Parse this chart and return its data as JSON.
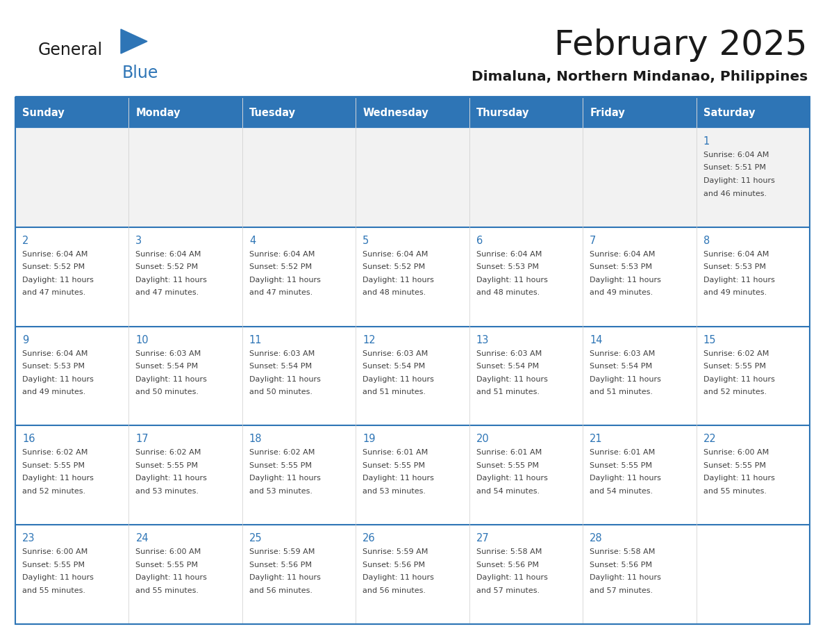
{
  "title": "February 2025",
  "subtitle": "Dimaluna, Northern Mindanao, Philippines",
  "days_of_week": [
    "Sunday",
    "Monday",
    "Tuesday",
    "Wednesday",
    "Thursday",
    "Friday",
    "Saturday"
  ],
  "header_bg": "#2E75B6",
  "header_text": "#FFFFFF",
  "cell_bg": "#FFFFFF",
  "row1_bg": "#F2F2F2",
  "border_color": "#2E75B6",
  "row_divider_color": "#2E75B6",
  "day_number_color": "#2E75B6",
  "text_color": "#404040",
  "title_color": "#1a1a1a",
  "logo_general_color": "#1a1a1a",
  "logo_blue_color": "#2E75B6",
  "calendar_data": [
    [
      {
        "day": null,
        "sunrise": null,
        "sunset": null,
        "daylight": null
      },
      {
        "day": null,
        "sunrise": null,
        "sunset": null,
        "daylight": null
      },
      {
        "day": null,
        "sunrise": null,
        "sunset": null,
        "daylight": null
      },
      {
        "day": null,
        "sunrise": null,
        "sunset": null,
        "daylight": null
      },
      {
        "day": null,
        "sunrise": null,
        "sunset": null,
        "daylight": null
      },
      {
        "day": null,
        "sunrise": null,
        "sunset": null,
        "daylight": null
      },
      {
        "day": 1,
        "sunrise": "6:04 AM",
        "sunset": "5:51 PM",
        "daylight": "11 hours and 46 minutes."
      }
    ],
    [
      {
        "day": 2,
        "sunrise": "6:04 AM",
        "sunset": "5:52 PM",
        "daylight": "11 hours and 47 minutes."
      },
      {
        "day": 3,
        "sunrise": "6:04 AM",
        "sunset": "5:52 PM",
        "daylight": "11 hours and 47 minutes."
      },
      {
        "day": 4,
        "sunrise": "6:04 AM",
        "sunset": "5:52 PM",
        "daylight": "11 hours and 47 minutes."
      },
      {
        "day": 5,
        "sunrise": "6:04 AM",
        "sunset": "5:52 PM",
        "daylight": "11 hours and 48 minutes."
      },
      {
        "day": 6,
        "sunrise": "6:04 AM",
        "sunset": "5:53 PM",
        "daylight": "11 hours and 48 minutes."
      },
      {
        "day": 7,
        "sunrise": "6:04 AM",
        "sunset": "5:53 PM",
        "daylight": "11 hours and 49 minutes."
      },
      {
        "day": 8,
        "sunrise": "6:04 AM",
        "sunset": "5:53 PM",
        "daylight": "11 hours and 49 minutes."
      }
    ],
    [
      {
        "day": 9,
        "sunrise": "6:04 AM",
        "sunset": "5:53 PM",
        "daylight": "11 hours and 49 minutes."
      },
      {
        "day": 10,
        "sunrise": "6:03 AM",
        "sunset": "5:54 PM",
        "daylight": "11 hours and 50 minutes."
      },
      {
        "day": 11,
        "sunrise": "6:03 AM",
        "sunset": "5:54 PM",
        "daylight": "11 hours and 50 minutes."
      },
      {
        "day": 12,
        "sunrise": "6:03 AM",
        "sunset": "5:54 PM",
        "daylight": "11 hours and 51 minutes."
      },
      {
        "day": 13,
        "sunrise": "6:03 AM",
        "sunset": "5:54 PM",
        "daylight": "11 hours and 51 minutes."
      },
      {
        "day": 14,
        "sunrise": "6:03 AM",
        "sunset": "5:54 PM",
        "daylight": "11 hours and 51 minutes."
      },
      {
        "day": 15,
        "sunrise": "6:02 AM",
        "sunset": "5:55 PM",
        "daylight": "11 hours and 52 minutes."
      }
    ],
    [
      {
        "day": 16,
        "sunrise": "6:02 AM",
        "sunset": "5:55 PM",
        "daylight": "11 hours and 52 minutes."
      },
      {
        "day": 17,
        "sunrise": "6:02 AM",
        "sunset": "5:55 PM",
        "daylight": "11 hours and 53 minutes."
      },
      {
        "day": 18,
        "sunrise": "6:02 AM",
        "sunset": "5:55 PM",
        "daylight": "11 hours and 53 minutes."
      },
      {
        "day": 19,
        "sunrise": "6:01 AM",
        "sunset": "5:55 PM",
        "daylight": "11 hours and 53 minutes."
      },
      {
        "day": 20,
        "sunrise": "6:01 AM",
        "sunset": "5:55 PM",
        "daylight": "11 hours and 54 minutes."
      },
      {
        "day": 21,
        "sunrise": "6:01 AM",
        "sunset": "5:55 PM",
        "daylight": "11 hours and 54 minutes."
      },
      {
        "day": 22,
        "sunrise": "6:00 AM",
        "sunset": "5:55 PM",
        "daylight": "11 hours and 55 minutes."
      }
    ],
    [
      {
        "day": 23,
        "sunrise": "6:00 AM",
        "sunset": "5:55 PM",
        "daylight": "11 hours and 55 minutes."
      },
      {
        "day": 24,
        "sunrise": "6:00 AM",
        "sunset": "5:55 PM",
        "daylight": "11 hours and 55 minutes."
      },
      {
        "day": 25,
        "sunrise": "5:59 AM",
        "sunset": "5:56 PM",
        "daylight": "11 hours and 56 minutes."
      },
      {
        "day": 26,
        "sunrise": "5:59 AM",
        "sunset": "5:56 PM",
        "daylight": "11 hours and 56 minutes."
      },
      {
        "day": 27,
        "sunrise": "5:58 AM",
        "sunset": "5:56 PM",
        "daylight": "11 hours and 57 minutes."
      },
      {
        "day": 28,
        "sunrise": "5:58 AM",
        "sunset": "5:56 PM",
        "daylight": "11 hours and 57 minutes."
      },
      {
        "day": null,
        "sunrise": null,
        "sunset": null,
        "daylight": null
      }
    ]
  ]
}
